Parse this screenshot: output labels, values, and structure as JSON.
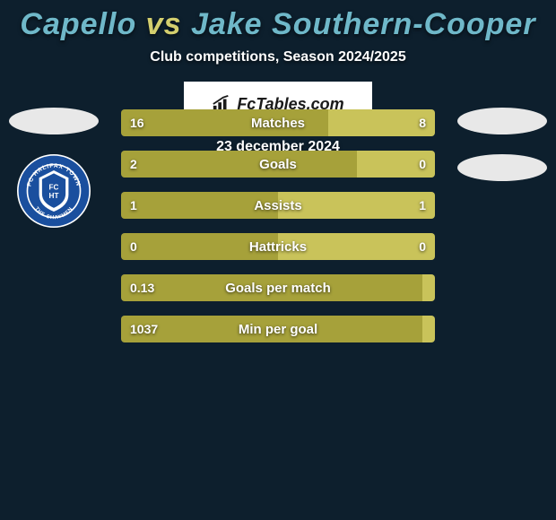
{
  "header": {
    "player1": "Capello",
    "vs": "vs",
    "player2": "Jake Southern-Cooper",
    "subtitle": "Club competitions, Season 2024/2025",
    "title_fontsize": 34,
    "title_color_players": "#6fb8c9",
    "title_color_vs": "#d4cf6e",
    "subtitle_fontsize": 16
  },
  "colors": {
    "background": "#0d1f2d",
    "bar_left": "#a6a13a",
    "bar_right": "#c9c35a",
    "bar_track": "#2a3a45",
    "ellipse": "#e8e8e8",
    "text": "#ffffff"
  },
  "bars": [
    {
      "label": "Matches",
      "left_val": "16",
      "right_val": "8",
      "left_pct": 66,
      "right_pct": 34
    },
    {
      "label": "Goals",
      "left_val": "2",
      "right_val": "0",
      "left_pct": 75,
      "right_pct": 25
    },
    {
      "label": "Assists",
      "left_val": "1",
      "right_val": "1",
      "left_pct": 50,
      "right_pct": 50
    },
    {
      "label": "Hattricks",
      "left_val": "0",
      "right_val": "0",
      "left_pct": 50,
      "right_pct": 50
    },
    {
      "label": "Goals per match",
      "left_val": "0.13",
      "right_val": "",
      "left_pct": 96,
      "right_pct": 4
    },
    {
      "label": "Min per goal",
      "left_val": "1037",
      "right_val": "",
      "left_pct": 96,
      "right_pct": 4
    }
  ],
  "club_badge": {
    "outer_color": "#1a4f9e",
    "inner_color": "#ffffff",
    "text_top": "FC HALIFAX TOWN",
    "text_bottom": "THE SHAYMEN",
    "center_text": "FC HT"
  },
  "branding": {
    "text": "FcTables.com"
  },
  "footer": {
    "date": "23 december 2024"
  }
}
